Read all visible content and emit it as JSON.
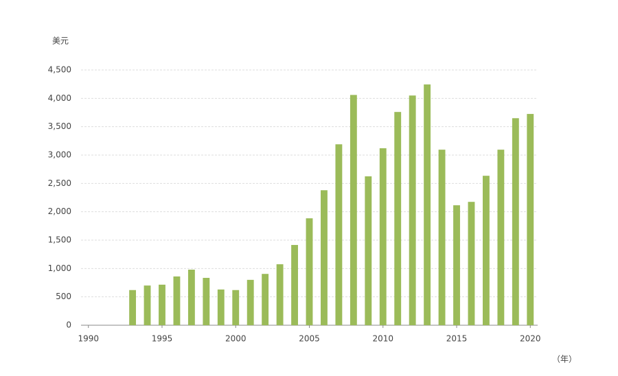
{
  "chart_data": {
    "type": "bar",
    "y_label": "美元",
    "x_label": "（年）",
    "x": [
      1993,
      1994,
      1995,
      1996,
      1997,
      1998,
      1999,
      2000,
      2001,
      2002,
      2003,
      2004,
      2005,
      2006,
      2007,
      2008,
      2009,
      2010,
      2011,
      2012,
      2013,
      2014,
      2015,
      2016,
      2017,
      2018,
      2019,
      2020
    ],
    "values": [
      620,
      700,
      715,
      860,
      980,
      835,
      630,
      620,
      800,
      905,
      1075,
      1415,
      1885,
      2380,
      3190,
      4060,
      2625,
      3120,
      3760,
      4050,
      4245,
      3095,
      2115,
      2175,
      2635,
      3095,
      3650,
      3725
    ],
    "color": "#9bbb59",
    "xlim": [
      1989.5,
      2020.5
    ],
    "xticks": [
      1990,
      1995,
      2000,
      2005,
      2010,
      2015,
      2020
    ],
    "ylim": [
      0,
      4500
    ],
    "yticks": [
      0,
      500,
      {
        "value": 1000,
        "label": "1,000"
      },
      {
        "value": 1500,
        "label": "1,500"
      },
      {
        "value": 2000,
        "label": "2,000"
      },
      {
        "value": 2500,
        "label": "2,500"
      },
      {
        "value": 3000,
        "label": "3,000"
      },
      {
        "value": 3500,
        "label": "3,500"
      },
      {
        "value": 4000,
        "label": "4,000"
      },
      {
        "value": 4500,
        "label": "4,500"
      }
    ],
    "grid": true
  }
}
